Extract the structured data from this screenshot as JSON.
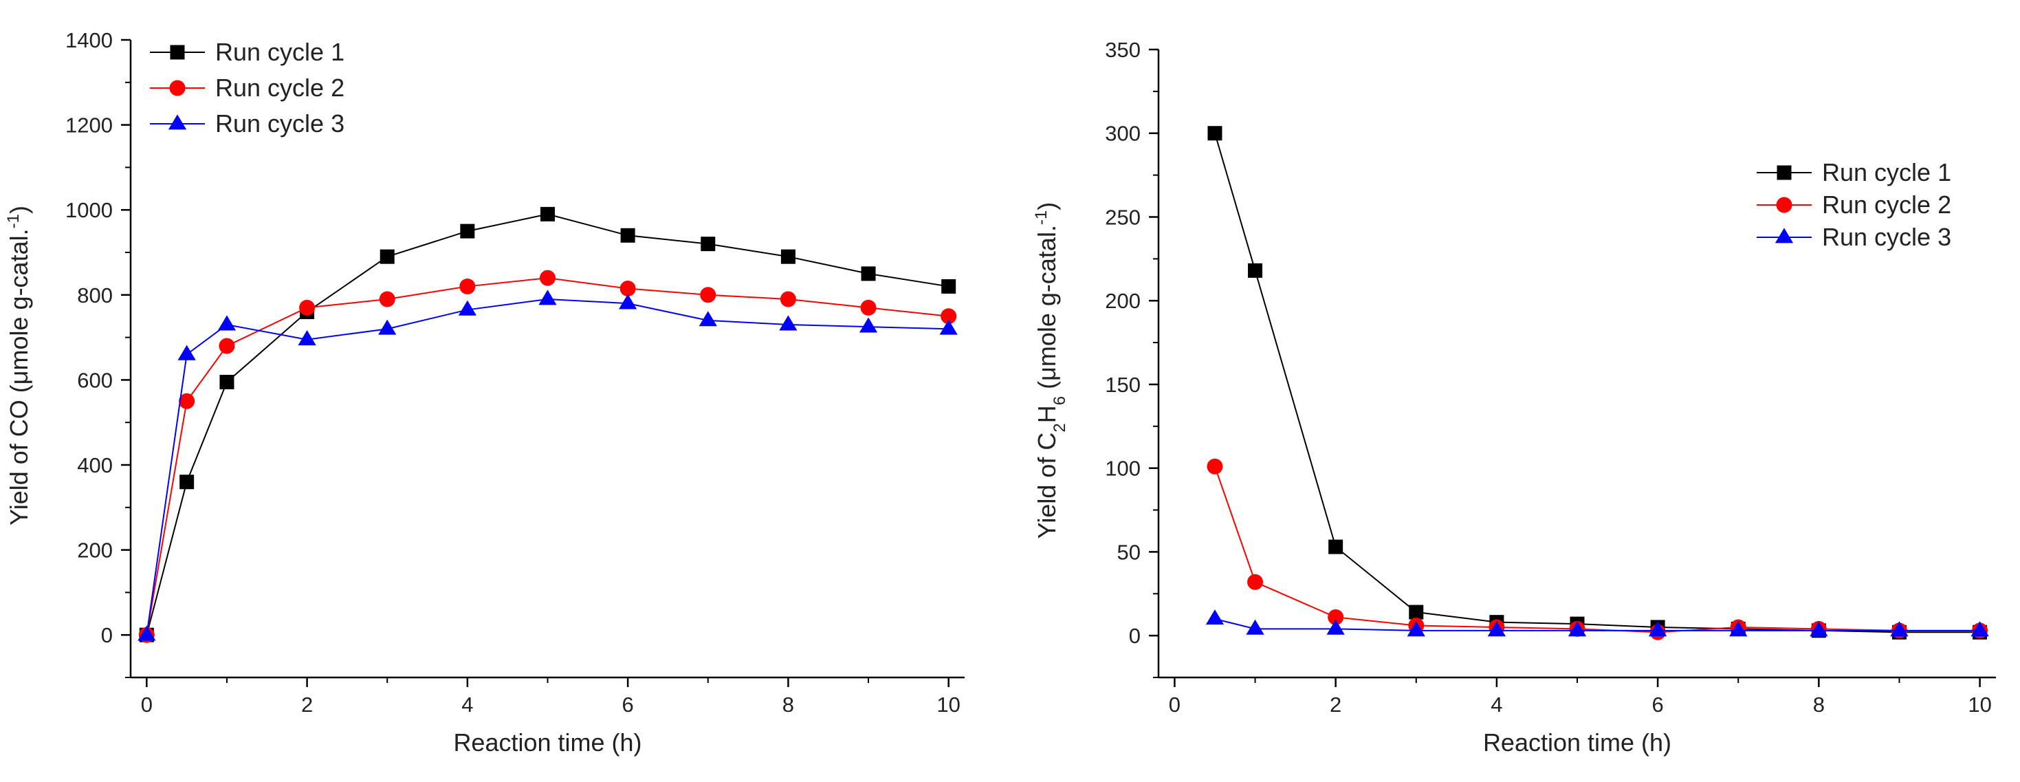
{
  "chart_data": [
    {
      "type": "line",
      "xlabel": "Reaction time (h)",
      "ylabel": "Yield of CO (μmole g-catal.",
      "ylabel_sup": "-1",
      "ylabel_close": ")",
      "xlim": [
        -0.2,
        10.2
      ],
      "ylim": [
        -100,
        1400
      ],
      "xticks": [
        0,
        2,
        4,
        6,
        8,
        10
      ],
      "yticks": [
        0,
        200,
        400,
        600,
        800,
        1000,
        1200,
        1400
      ],
      "legend_position": "top-left",
      "series": [
        {
          "name": "Run cycle 1",
          "color": "#000000",
          "marker": "square",
          "x": [
            0,
            0.5,
            1,
            2,
            3,
            4,
            5,
            6,
            7,
            8,
            9,
            10
          ],
          "y": [
            0,
            360,
            595,
            760,
            890,
            950,
            990,
            940,
            920,
            890,
            850,
            820
          ]
        },
        {
          "name": "Run cycle 2",
          "color": "#ff0000",
          "marker": "circle",
          "x": [
            0,
            0.5,
            1,
            2,
            3,
            4,
            5,
            6,
            7,
            8,
            9,
            10
          ],
          "y": [
            0,
            550,
            680,
            770,
            790,
            820,
            840,
            815,
            800,
            790,
            770,
            750
          ]
        },
        {
          "name": "Run cycle 3",
          "color": "#0000ff",
          "marker": "triangle",
          "x": [
            0,
            0.5,
            1,
            2,
            3,
            4,
            5,
            6,
            7,
            8,
            9,
            10
          ],
          "y": [
            0,
            660,
            730,
            695,
            720,
            765,
            790,
            780,
            740,
            730,
            725,
            720
          ]
        }
      ]
    },
    {
      "type": "line",
      "xlabel": "Reaction time (h)",
      "ylabel_parts": [
        "Yield of C",
        "2",
        "H",
        "6",
        " (μmole g-catal.",
        "-1",
        ")"
      ],
      "xlim": [
        -0.2,
        10.2
      ],
      "ylim": [
        -25,
        350
      ],
      "xticks": [
        0,
        2,
        4,
        6,
        8,
        10
      ],
      "yticks": [
        0,
        50,
        100,
        150,
        200,
        250,
        300,
        350
      ],
      "legend_position": "top-right",
      "series": [
        {
          "name": "Run cycle 1",
          "color": "#000000",
          "marker": "square",
          "x": [
            0.5,
            1,
            2,
            3,
            4,
            5,
            6,
            7,
            8,
            9,
            10
          ],
          "y": [
            300,
            218,
            53,
            14,
            8,
            7,
            5,
            4,
            3,
            2,
            2
          ]
        },
        {
          "name": "Run cycle 2",
          "color": "#ff0000",
          "marker": "circle",
          "x": [
            0.5,
            1,
            2,
            3,
            4,
            5,
            6,
            7,
            8,
            9,
            10
          ],
          "y": [
            101,
            32,
            11,
            6,
            5,
            4,
            2,
            5,
            4,
            3,
            3
          ]
        },
        {
          "name": "Run cycle 3",
          "color": "#0000ff",
          "marker": "triangle",
          "x": [
            0.5,
            1,
            2,
            3,
            4,
            5,
            6,
            7,
            8,
            9,
            10
          ],
          "y": [
            10,
            4,
            4,
            3,
            3,
            3,
            3,
            3,
            3,
            3,
            3
          ]
        }
      ]
    }
  ]
}
